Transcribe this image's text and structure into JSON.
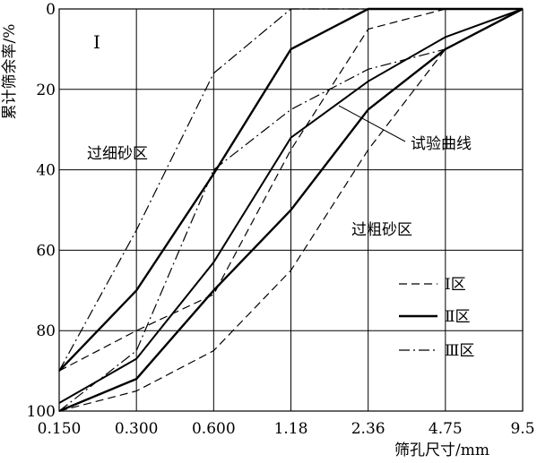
{
  "chart_data": {
    "type": "line",
    "title": "",
    "xlabel": "筛孔尺寸/mm",
    "ylabel": "累计筛余率/%",
    "x_ticks": [
      "0.150",
      "0.300",
      "0.600",
      "1.18",
      "2.36",
      "4.75",
      "9.5"
    ],
    "y_ticks": [
      "0",
      "20",
      "40",
      "60",
      "80",
      "100"
    ],
    "ylim": [
      0,
      100
    ],
    "y_inverted": true,
    "grid": true,
    "legend": {
      "placement": "bottom-right",
      "entries": [
        {
          "label": "Ⅰ区",
          "dash": "dashed"
        },
        {
          "label": "Ⅱ区",
          "dash": "solid"
        },
        {
          "label": "Ⅲ区",
          "dash": "dashdot"
        }
      ]
    },
    "annotations": {
      "panel_label": "Ⅰ",
      "fine_region": "过细砂区",
      "coarse_region": "过粗砂区",
      "test_curve": "试验曲线"
    },
    "series": [
      {
        "name": "Ⅰ区",
        "dash": "dashed",
        "bound": "upper",
        "values": [
          90,
          80,
          71,
          35,
          5,
          0,
          0
        ]
      },
      {
        "name": "Ⅰ区",
        "dash": "dashed",
        "bound": "lower",
        "values": [
          100,
          95,
          85,
          65,
          35,
          10,
          0
        ]
      },
      {
        "name": "Ⅱ区",
        "dash": "solid",
        "bound": "upper",
        "values": [
          90,
          70,
          41,
          10,
          0,
          0,
          0
        ]
      },
      {
        "name": "Ⅱ区",
        "dash": "solid",
        "bound": "lower",
        "values": [
          100,
          92,
          70,
          50,
          25,
          10,
          0
        ]
      },
      {
        "name": "Ⅲ区",
        "dash": "dashdot",
        "bound": "upper",
        "values": [
          90,
          55,
          16,
          0,
          0,
          0,
          0
        ]
      },
      {
        "name": "Ⅲ区",
        "dash": "dashdot",
        "bound": "lower",
        "values": [
          100,
          85,
          40,
          25,
          15,
          10,
          0
        ]
      },
      {
        "name": "试验曲线",
        "dash": "solid",
        "bound": "test",
        "values": [
          98,
          87,
          63,
          32,
          18,
          7,
          0
        ]
      }
    ]
  }
}
